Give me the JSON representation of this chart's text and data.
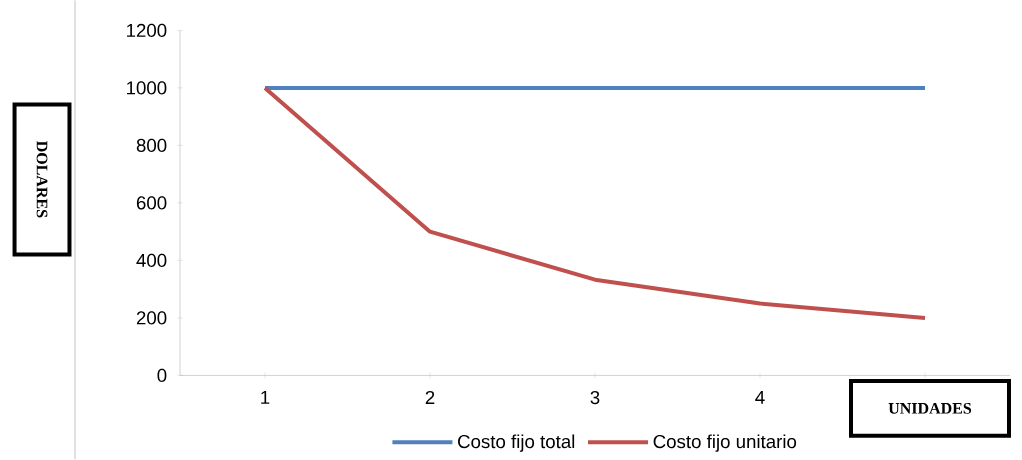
{
  "chart_data": {
    "type": "line",
    "xlabel": "UNIDADES",
    "ylabel": "DOLARES",
    "categories": [
      "1",
      "2",
      "3",
      "4",
      null
    ],
    "series": [
      {
        "name": "Costo fijo total",
        "color": "#4f81bd",
        "values": [
          1000,
          1000,
          1000,
          1000,
          1000
        ]
      },
      {
        "name": "Costo fijo unitario",
        "color": "#c0504d",
        "values": [
          1000,
          500,
          333,
          250,
          200
        ]
      }
    ],
    "ylim": [
      0,
      1200
    ],
    "yticks": [
      0,
      200,
      400,
      600,
      800,
      1000,
      1200
    ],
    "legend": "bottom"
  }
}
